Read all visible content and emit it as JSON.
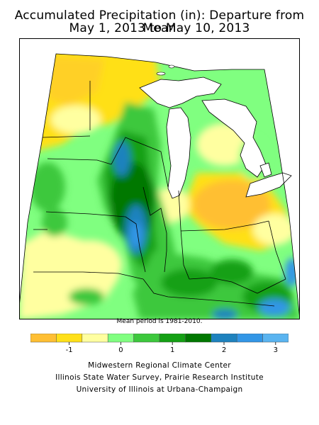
{
  "title_line1": "Accumulated Precipitation (in): Departure from Mean",
  "title_line2": "May 1, 2013 to May 10, 2013",
  "mean_period": "Mean period is 1981-2010.",
  "legend": {
    "colors": [
      "#ffbf33",
      "#ffe019",
      "#ffffa0",
      "#80ff80",
      "#3cc83c",
      "#14a014",
      "#007800",
      "#1e82be",
      "#3296e6",
      "#5ab4f0"
    ],
    "ticks": [
      {
        "label": "-1",
        "at": 1.5
      },
      {
        "label": "0",
        "at": 3.5
      },
      {
        "label": "1",
        "at": 5.5
      },
      {
        "label": "2",
        "at": 7.5
      },
      {
        "label": "3",
        "at": 9.5
      }
    ]
  },
  "credits": [
    "Midwestern Regional Climate Center",
    "Illinois State Water Survey, Prairie Research Institute",
    "University of Illinois at Urbana-Champaign"
  ]
}
